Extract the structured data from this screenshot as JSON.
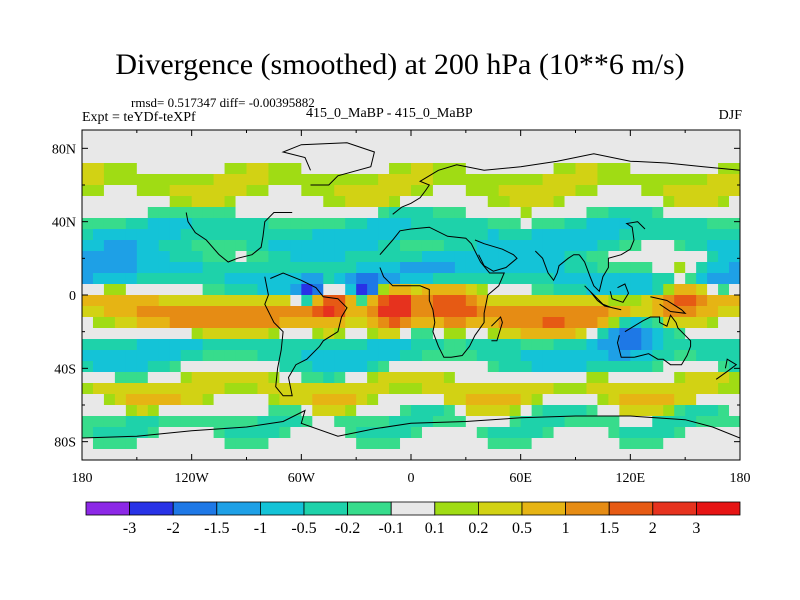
{
  "chart_data": {
    "type": "heatmap",
    "title": "Divergence (smoothed) at 200 hPa (10**6 m/s)",
    "stats_label": "rmsd= 0.517347 diff= -0.00395882",
    "left_label": "Expt = teYDf-teXPf",
    "center_label": "415_0_MaBP - 415_0_MaBP",
    "right_label": "DJF",
    "x_ticks": [
      "180",
      "120W",
      "60W",
      "0",
      "60E",
      "120E",
      "180"
    ],
    "x_tick_values": [
      -180,
      -120,
      -60,
      0,
      60,
      120,
      180
    ],
    "y_ticks": [
      "80N",
      "40N",
      "0",
      "40S",
      "80S"
    ],
    "y_tick_values": [
      80,
      40,
      0,
      -40,
      -80
    ],
    "xlim": [
      -180,
      180
    ],
    "ylim": [
      -90,
      90
    ],
    "colorbar_labels": [
      "-3",
      "-2",
      "-1.5",
      "-1",
      "-0.5",
      "-0.2",
      "-0.1",
      "0.1",
      "0.2",
      "0.5",
      "1",
      "1.5",
      "2",
      "3"
    ],
    "colorbar_levels": [
      -3,
      -2,
      -1.5,
      -1,
      -0.5,
      -0.2,
      -0.1,
      0.1,
      0.2,
      0.5,
      1,
      1.5,
      2,
      3
    ],
    "colorbar_colors": [
      "#8c28e6",
      "#2832e6",
      "#1e78e6",
      "#1ea0e6",
      "#14c3d7",
      "#1ed2aa",
      "#37dc8c",
      "#e8e8e8",
      "#a0dc14",
      "#d2d214",
      "#e6b414",
      "#e68c14",
      "#e65a14",
      "#e6321e",
      "#e61414"
    ],
    "field_bands": [
      {
        "lat": 60,
        "width": 9,
        "amp": 0.35,
        "wave": 4,
        "phase": 0.5
      },
      {
        "lat": 32,
        "width": 9,
        "amp": -0.9,
        "wave": 3,
        "phase": 1.2
      },
      {
        "lat": 10,
        "width": 8,
        "amp": -1.3,
        "wave": 2,
        "phase": 0.3
      },
      {
        "lat": -8,
        "width": 8,
        "amp": 1.4,
        "wave": 2,
        "phase": 2.1
      },
      {
        "lat": -30,
        "width": 9,
        "amp": -0.8,
        "wave": 3,
        "phase": 0.8
      },
      {
        "lat": -52,
        "width": 8,
        "amp": 0.6,
        "wave": 4,
        "phase": 1.9
      },
      {
        "lat": -70,
        "width": 7,
        "amp": -0.4,
        "wave": 5,
        "phase": 0.2
      }
    ],
    "field_spots": [
      {
        "lon": -10,
        "lat": -8,
        "r": 12,
        "amp": 2.4
      },
      {
        "lon": -45,
        "lat": -4,
        "r": 12,
        "amp": 1.8
      },
      {
        "lon": -55,
        "lat": 2,
        "r": 8,
        "amp": -2.2
      },
      {
        "lon": -25,
        "lat": 3,
        "r": 7,
        "amp": -1.9
      },
      {
        "lon": 150,
        "lat": 0,
        "r": 14,
        "amp": 1.6
      },
      {
        "lon": 120,
        "lat": -22,
        "r": 14,
        "amp": -1.2
      },
      {
        "lon": 20,
        "lat": -8,
        "r": 14,
        "amp": 1.2
      }
    ],
    "land_outlines": [
      {
        "name": "north-america",
        "points": [
          [
            -65,
            45
          ],
          [
            -75,
            45
          ],
          [
            -80,
            40
          ],
          [
            -81,
            32
          ],
          [
            -82,
            26
          ],
          [
            -87,
            22
          ],
          [
            -95,
            20
          ],
          [
            -100,
            18
          ],
          [
            -105,
            22
          ],
          [
            -112,
            30
          ],
          [
            -118,
            34
          ],
          [
            -122,
            40
          ],
          [
            -123,
            45
          ]
        ]
      },
      {
        "name": "south-america",
        "points": [
          [
            -80,
            10
          ],
          [
            -78,
            0
          ],
          [
            -80,
            -5
          ],
          [
            -75,
            -15
          ],
          [
            -70,
            -20
          ],
          [
            -71,
            -30
          ],
          [
            -73,
            -40
          ],
          [
            -74,
            -50
          ],
          [
            -70,
            -55
          ],
          [
            -65,
            -55
          ],
          [
            -67,
            -45
          ],
          [
            -63,
            -38
          ],
          [
            -57,
            -35
          ],
          [
            -50,
            -28
          ],
          [
            -48,
            -25
          ],
          [
            -40,
            -20
          ],
          [
            -38,
            -12
          ],
          [
            -35,
            -7
          ],
          [
            -40,
            -2
          ],
          [
            -48,
            -1
          ],
          [
            -52,
            4
          ],
          [
            -60,
            8
          ],
          [
            -70,
            12
          ],
          [
            -77,
            9
          ]
        ]
      },
      {
        "name": "africa",
        "points": [
          [
            -17,
            15
          ],
          [
            -15,
            10
          ],
          [
            -10,
            5
          ],
          [
            -5,
            5
          ],
          [
            5,
            5
          ],
          [
            10,
            3
          ],
          [
            10,
            -3
          ],
          [
            12,
            -8
          ],
          [
            13,
            -15
          ],
          [
            12,
            -20
          ],
          [
            15,
            -28
          ],
          [
            18,
            -34
          ],
          [
            22,
            -34
          ],
          [
            28,
            -33
          ],
          [
            32,
            -28
          ],
          [
            35,
            -22
          ],
          [
            40,
            -15
          ],
          [
            40,
            -10
          ],
          [
            42,
            0
          ],
          [
            48,
            5
          ],
          [
            51,
            12
          ],
          [
            43,
            12
          ],
          [
            38,
            18
          ],
          [
            33,
            28
          ],
          [
            30,
            31
          ],
          [
            20,
            32
          ],
          [
            10,
            37
          ],
          [
            0,
            36
          ],
          [
            -6,
            35
          ],
          [
            -10,
            30
          ],
          [
            -17,
            22
          ]
        ]
      },
      {
        "name": "arabia",
        "points": [
          [
            35,
            30
          ],
          [
            40,
            28
          ],
          [
            50,
            25
          ],
          [
            56,
            22
          ],
          [
            58,
            20
          ],
          [
            52,
            15
          ],
          [
            45,
            13
          ],
          [
            40,
            16
          ],
          [
            37,
            22
          ]
        ]
      },
      {
        "name": "india",
        "points": [
          [
            68,
            24
          ],
          [
            72,
            20
          ],
          [
            75,
            12
          ],
          [
            78,
            8
          ],
          [
            80,
            12
          ],
          [
            81,
            16
          ],
          [
            86,
            20
          ],
          [
            89,
            22
          ],
          [
            92,
            22
          ]
        ]
      },
      {
        "name": "southeast-asia",
        "points": [
          [
            92,
            22
          ],
          [
            95,
            18
          ],
          [
            98,
            10
          ],
          [
            100,
            5
          ],
          [
            103,
            2
          ],
          [
            105,
            10
          ],
          [
            108,
            15
          ],
          [
            108,
            20
          ],
          [
            115,
            22
          ],
          [
            120,
            25
          ],
          [
            122,
            30
          ],
          [
            121,
            37
          ],
          [
            118,
            39
          ],
          [
            124,
            40
          ],
          [
            128,
            36
          ]
        ]
      },
      {
        "name": "borneo",
        "points": [
          [
            109,
            2
          ],
          [
            110,
            -2
          ],
          [
            116,
            -4
          ],
          [
            119,
            1
          ],
          [
            117,
            6
          ],
          [
            113,
            4
          ]
        ]
      },
      {
        "name": "sumatra-java",
        "points": [
          [
            95,
            5
          ],
          [
            100,
            0
          ],
          [
            105,
            -5
          ],
          [
            110,
            -7
          ],
          [
            115,
            -8
          ],
          [
            106,
            -6
          ],
          [
            102,
            -3
          ],
          [
            98,
            2
          ]
        ]
      },
      {
        "name": "new-guinea",
        "points": [
          [
            131,
            -1
          ],
          [
            140,
            -3
          ],
          [
            148,
            -8
          ],
          [
            150,
            -10
          ],
          [
            142,
            -9
          ],
          [
            136,
            -5
          ]
        ]
      },
      {
        "name": "australia",
        "points": [
          [
            114,
            -22
          ],
          [
            113,
            -26
          ],
          [
            115,
            -34
          ],
          [
            122,
            -34
          ],
          [
            130,
            -32
          ],
          [
            135,
            -35
          ],
          [
            138,
            -35
          ],
          [
            142,
            -38
          ],
          [
            148,
            -38
          ],
          [
            151,
            -33
          ],
          [
            153,
            -28
          ],
          [
            153,
            -25
          ],
          [
            146,
            -18
          ],
          [
            145,
            -15
          ],
          [
            142,
            -11
          ],
          [
            140,
            -17
          ],
          [
            136,
            -15
          ],
          [
            136,
            -12
          ],
          [
            131,
            -12
          ],
          [
            127,
            -14
          ],
          [
            122,
            -17
          ],
          [
            117,
            -20
          ]
        ]
      },
      {
        "name": "antarctica",
        "points": [
          [
            -180,
            -78
          ],
          [
            -150,
            -77
          ],
          [
            -120,
            -74
          ],
          [
            -90,
            -72
          ],
          [
            -70,
            -69
          ],
          [
            -58,
            -63
          ],
          [
            -60,
            -70
          ],
          [
            -40,
            -77
          ],
          [
            -20,
            -73
          ],
          [
            0,
            -70
          ],
          [
            30,
            -69
          ],
          [
            60,
            -67
          ],
          [
            90,
            -66
          ],
          [
            120,
            -66
          ],
          [
            150,
            -68
          ],
          [
            165,
            -72
          ],
          [
            180,
            -78
          ]
        ]
      },
      {
        "name": "greenland",
        "points": [
          [
            -55,
            60
          ],
          [
            -45,
            60
          ],
          [
            -40,
            65
          ],
          [
            -22,
            70
          ],
          [
            -20,
            78
          ],
          [
            -35,
            83
          ],
          [
            -60,
            82
          ],
          [
            -70,
            78
          ],
          [
            -58,
            75
          ],
          [
            -55,
            68
          ]
        ]
      },
      {
        "name": "eurasia-north",
        "points": [
          [
            -10,
            44
          ],
          [
            -5,
            48
          ],
          [
            0,
            50
          ],
          [
            5,
            53
          ],
          [
            8,
            57
          ],
          [
            10,
            60
          ],
          [
            5,
            62
          ],
          [
            15,
            68
          ],
          [
            25,
            71
          ],
          [
            40,
            68
          ],
          [
            60,
            70
          ],
          [
            80,
            73
          ],
          [
            100,
            77
          ],
          [
            120,
            73
          ],
          [
            140,
            72
          ],
          [
            160,
            70
          ],
          [
            180,
            68
          ]
        ]
      },
      {
        "name": "madagascar",
        "points": [
          [
            44,
            -25
          ],
          [
            47,
            -25
          ],
          [
            50,
            -15
          ],
          [
            49,
            -12
          ],
          [
            44,
            -17
          ]
        ]
      },
      {
        "name": "new-zealand",
        "points": [
          [
            167,
            -46
          ],
          [
            174,
            -41
          ],
          [
            178,
            -38
          ],
          [
            173,
            -35
          ],
          [
            172,
            -40
          ]
        ]
      }
    ]
  }
}
